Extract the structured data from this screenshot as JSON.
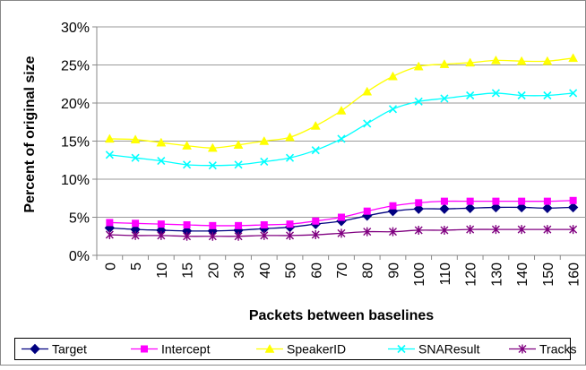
{
  "chart_data": {
    "type": "line",
    "title": "",
    "xlabel": "Packets between baselines",
    "ylabel": "Percent of original size",
    "x": [
      "0",
      "5",
      "10",
      "15",
      "20",
      "30",
      "40",
      "50",
      "60",
      "70",
      "80",
      "90",
      "100",
      "110",
      "120",
      "130",
      "140",
      "150",
      "160"
    ],
    "ylim": [
      0,
      30
    ],
    "yticks": [
      "0%",
      "5%",
      "10%",
      "15%",
      "20%",
      "25%",
      "30%"
    ],
    "grid": "horizontal",
    "legend_position": "bottom",
    "series": [
      {
        "name": "Target",
        "color": "#000080",
        "marker": "diamond",
        "values": [
          3.6,
          3.4,
          3.3,
          3.2,
          3.2,
          3.3,
          3.5,
          3.7,
          4.1,
          4.5,
          5.2,
          5.8,
          6.1,
          6.1,
          6.2,
          6.3,
          6.3,
          6.2,
          6.3
        ]
      },
      {
        "name": "Intercept",
        "color": "#FF00FF",
        "marker": "square",
        "values": [
          4.3,
          4.2,
          4.1,
          4.0,
          3.9,
          3.9,
          4.0,
          4.1,
          4.5,
          5.0,
          5.8,
          6.5,
          6.9,
          7.1,
          7.1,
          7.1,
          7.1,
          7.1,
          7.2
        ]
      },
      {
        "name": "SpeakerID",
        "color": "#FFFF00",
        "marker": "triangle",
        "values": [
          15.3,
          15.2,
          14.8,
          14.4,
          14.1,
          14.5,
          15.0,
          15.5,
          17.0,
          19.0,
          21.5,
          23.5,
          24.8,
          25.1,
          25.3,
          25.6,
          25.5,
          25.5,
          25.9
        ]
      },
      {
        "name": "SNAResult",
        "color": "#00FFFF",
        "marker": "x",
        "values": [
          13.2,
          12.8,
          12.4,
          11.9,
          11.8,
          11.9,
          12.3,
          12.8,
          13.8,
          15.3,
          17.3,
          19.2,
          20.2,
          20.6,
          21.0,
          21.3,
          21.0,
          21.0,
          21.3
        ]
      },
      {
        "name": "Tracks",
        "color": "#800080",
        "marker": "star",
        "values": [
          2.7,
          2.6,
          2.6,
          2.5,
          2.5,
          2.5,
          2.6,
          2.6,
          2.7,
          2.9,
          3.1,
          3.1,
          3.3,
          3.3,
          3.4,
          3.4,
          3.4,
          3.4,
          3.4
        ]
      }
    ]
  }
}
